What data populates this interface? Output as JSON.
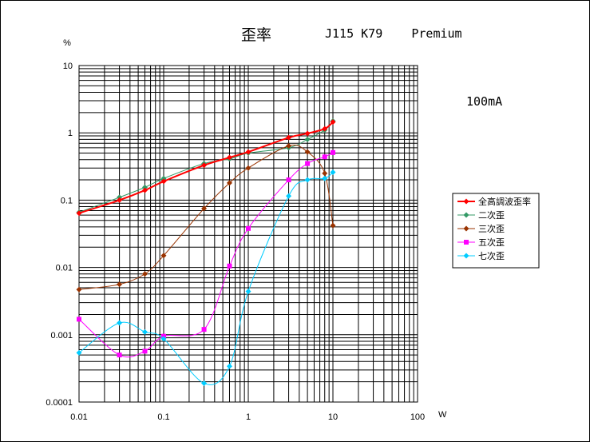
{
  "chart_data": {
    "type": "line",
    "title": "歪率",
    "subtitle": "J115 K79    Premium",
    "annotation": "100mA",
    "xlabel": "W",
    "ylabel": "%",
    "x_scale": "log",
    "y_scale": "log",
    "xlim": [
      0.01,
      100
    ],
    "ylim": [
      0.0001,
      10
    ],
    "grid": true,
    "legend_position": "right",
    "x_ticks": [
      "0.01",
      "0.1",
      "1",
      "10",
      "100"
    ],
    "y_ticks": [
      "0.0001",
      "0.001",
      "0.01",
      "0.1",
      "1",
      "10"
    ],
    "series": [
      {
        "name": "全高調波歪率",
        "color": "#ff0000",
        "marker": "diamond",
        "x": [
          0.01,
          0.03,
          0.06,
          0.1,
          0.3,
          0.6,
          1,
          3,
          5,
          8,
          10
        ],
        "y": [
          0.064,
          0.1,
          0.14,
          0.19,
          0.33,
          0.43,
          0.52,
          0.85,
          0.98,
          1.15,
          1.45
        ]
      },
      {
        "name": "二次歪",
        "color": "#339966",
        "marker": "diamond",
        "x": [
          0.01,
          0.03,
          0.06,
          0.1,
          0.3,
          0.6,
          1,
          3,
          5,
          8,
          10
        ],
        "y": [
          0.066,
          0.11,
          0.155,
          0.21,
          0.35,
          0.41,
          0.5,
          0.6,
          0.8,
          1.1,
          1.5
        ]
      },
      {
        "name": "三次歪",
        "color": "#993300",
        "marker": "diamond",
        "x": [
          0.01,
          0.03,
          0.06,
          0.1,
          0.3,
          0.6,
          1,
          3,
          5,
          8,
          10
        ],
        "y": [
          0.0047,
          0.0056,
          0.008,
          0.015,
          0.075,
          0.18,
          0.3,
          0.64,
          0.52,
          0.25,
          0.042
        ]
      },
      {
        "name": "五次歪",
        "color": "#ff00ff",
        "marker": "square",
        "x": [
          0.01,
          0.03,
          0.06,
          0.1,
          0.3,
          0.6,
          1,
          3,
          5,
          8,
          10
        ],
        "y": [
          0.0017,
          0.0005,
          0.00057,
          0.00095,
          0.0012,
          0.0105,
          0.038,
          0.2,
          0.35,
          0.44,
          0.51
        ]
      },
      {
        "name": "七次歪",
        "color": "#00ccff",
        "marker": "diamond",
        "x": [
          0.01,
          0.03,
          0.06,
          0.1,
          0.3,
          0.6,
          1,
          3,
          5,
          8,
          10
        ],
        "y": [
          0.00054,
          0.0015,
          0.0011,
          0.00087,
          0.00019,
          0.00034,
          0.0044,
          0.115,
          0.2,
          0.21,
          0.26
        ]
      }
    ]
  }
}
